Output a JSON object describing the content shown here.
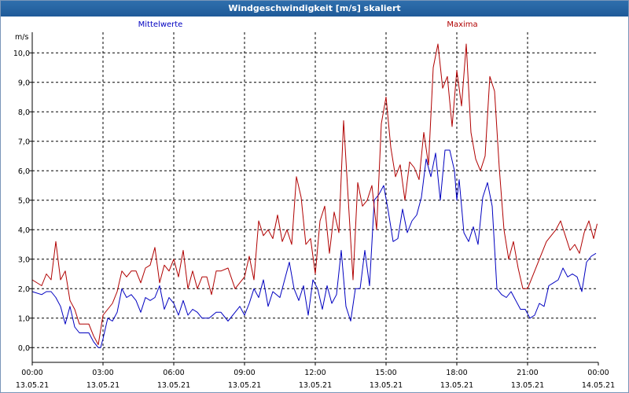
{
  "chart_data": {
    "type": "line",
    "title": "Windgeschwindigkeit [m/s] skaliert",
    "ylabel": "m/s",
    "ylim": [
      -0.5,
      10.7
    ],
    "yticks": [
      "0,0",
      "1,0",
      "2,0",
      "3,0",
      "4,0",
      "5,0",
      "6,0",
      "7,0",
      "8,0",
      "9,0",
      "10,0"
    ],
    "xlim_hours": [
      0,
      24
    ],
    "xticks": [
      {
        "time": "00:00",
        "date": "13.05.21"
      },
      {
        "time": "03:00",
        "date": "13.05.21"
      },
      {
        "time": "06:00",
        "date": "13.05.21"
      },
      {
        "time": "09:00",
        "date": "13.05.21"
      },
      {
        "time": "12:00",
        "date": "13.05.21"
      },
      {
        "time": "15:00",
        "date": "13.05.21"
      },
      {
        "time": "18:00",
        "date": "13.05.21"
      },
      {
        "time": "21:00",
        "date": "13.05.21"
      },
      {
        "time": "00:00",
        "date": "14.05.21"
      }
    ],
    "grid": true,
    "series": [
      {
        "name": "Mittelwerte",
        "color": "#0000c0",
        "x_hours": [
          0.0,
          0.4,
          0.6,
          0.8,
          1.0,
          1.2,
          1.4,
          1.6,
          1.8,
          2.0,
          2.2,
          2.4,
          2.6,
          2.7,
          2.8,
          2.9,
          3.0,
          3.2,
          3.4,
          3.6,
          3.8,
          4.0,
          4.2,
          4.4,
          4.6,
          4.8,
          5.0,
          5.2,
          5.4,
          5.6,
          5.8,
          6.0,
          6.2,
          6.4,
          6.6,
          6.8,
          7.0,
          7.2,
          7.5,
          7.8,
          8.0,
          8.3,
          8.6,
          8.8,
          9.0,
          9.2,
          9.4,
          9.6,
          9.8,
          10.0,
          10.2,
          10.5,
          10.7,
          10.9,
          11.1,
          11.3,
          11.5,
          11.7,
          11.9,
          12.1,
          12.3,
          12.5,
          12.7,
          12.9,
          13.1,
          13.3,
          13.5,
          13.7,
          13.9,
          14.1,
          14.3,
          14.5,
          14.7,
          14.9,
          15.1,
          15.3,
          15.5,
          15.7,
          15.9,
          16.1,
          16.3,
          16.5,
          16.7,
          16.9,
          17.1,
          17.3,
          17.5,
          17.7,
          17.9,
          18.0,
          18.1,
          18.3,
          18.5,
          18.7,
          18.9,
          19.1,
          19.3,
          19.5,
          19.7,
          19.9,
          20.1,
          20.3,
          20.5,
          20.7,
          20.9,
          21.1,
          21.3,
          21.5,
          21.7,
          21.9,
          22.1,
          22.3,
          22.5,
          22.7,
          22.9,
          23.1,
          23.3,
          23.5,
          23.7,
          23.9
        ],
        "values": [
          1.9,
          1.8,
          1.9,
          1.9,
          1.7,
          1.4,
          0.8,
          1.4,
          0.7,
          0.5,
          0.5,
          0.5,
          0.2,
          0.1,
          0.0,
          0.0,
          0.3,
          1.0,
          0.9,
          1.2,
          2.0,
          1.7,
          1.8,
          1.6,
          1.2,
          1.7,
          1.6,
          1.7,
          2.1,
          1.3,
          1.7,
          1.5,
          1.1,
          1.6,
          1.1,
          1.3,
          1.2,
          1.0,
          1.0,
          1.2,
          1.2,
          0.9,
          1.2,
          1.4,
          1.1,
          1.5,
          2.0,
          1.7,
          2.3,
          1.4,
          1.9,
          1.7,
          2.3,
          2.9,
          2.0,
          1.6,
          2.1,
          1.1,
          2.3,
          2.0,
          1.3,
          2.1,
          1.5,
          1.8,
          3.3,
          1.4,
          0.9,
          2.0,
          2.0,
          3.3,
          2.1,
          5.0,
          5.2,
          5.5,
          4.6,
          3.6,
          3.7,
          4.7,
          3.9,
          4.3,
          4.5,
          5.1,
          6.4,
          5.8,
          6.6,
          5.0,
          6.7,
          6.7,
          6.0,
          5.0,
          5.7,
          3.9,
          3.6,
          4.1,
          3.5,
          5.1,
          5.6,
          4.8,
          2.0,
          1.8,
          1.7,
          1.9,
          1.6,
          1.3,
          1.3,
          1.0,
          1.1,
          1.5,
          1.4,
          2.1,
          2.2,
          2.3,
          2.7,
          2.4,
          2.5,
          2.4,
          1.9,
          2.9,
          3.1,
          3.2
        ]
      },
      {
        "name": "Maxima",
        "color": "#b00000",
        "x_hours": [
          0.0,
          0.4,
          0.6,
          0.8,
          1.0,
          1.2,
          1.4,
          1.6,
          1.8,
          2.0,
          2.2,
          2.4,
          2.6,
          2.8,
          3.0,
          3.2,
          3.4,
          3.6,
          3.8,
          4.0,
          4.2,
          4.4,
          4.6,
          4.8,
          5.0,
          5.2,
          5.4,
          5.6,
          5.8,
          6.0,
          6.2,
          6.4,
          6.6,
          6.8,
          7.0,
          7.2,
          7.4,
          7.6,
          7.8,
          8.0,
          8.3,
          8.6,
          8.8,
          9.0,
          9.2,
          9.4,
          9.6,
          9.8,
          10.0,
          10.2,
          10.4,
          10.6,
          10.8,
          11.0,
          11.2,
          11.4,
          11.6,
          11.8,
          12.0,
          12.2,
          12.4,
          12.6,
          12.8,
          13.0,
          13.2,
          13.4,
          13.6,
          13.8,
          14.0,
          14.2,
          14.4,
          14.6,
          14.8,
          15.0,
          15.2,
          15.4,
          15.6,
          15.8,
          16.0,
          16.2,
          16.4,
          16.6,
          16.8,
          17.0,
          17.2,
          17.4,
          17.6,
          17.8,
          18.0,
          18.2,
          18.4,
          18.6,
          18.8,
          19.0,
          19.2,
          19.4,
          19.6,
          19.8,
          20.0,
          20.2,
          20.4,
          20.6,
          20.8,
          21.0,
          21.2,
          21.4,
          21.6,
          21.8,
          22.0,
          22.2,
          22.4,
          22.6,
          22.8,
          23.0,
          23.2,
          23.4,
          23.6,
          23.8,
          23.95
        ],
        "values": [
          2.3,
          2.1,
          2.5,
          2.3,
          3.6,
          2.3,
          2.6,
          1.6,
          1.3,
          0.8,
          0.8,
          0.8,
          0.4,
          0.1,
          1.1,
          1.3,
          1.5,
          1.9,
          2.6,
          2.4,
          2.6,
          2.6,
          2.2,
          2.7,
          2.8,
          3.4,
          2.2,
          2.8,
          2.6,
          3.0,
          2.4,
          3.3,
          2.0,
          2.6,
          2.0,
          2.4,
          2.4,
          1.8,
          2.6,
          2.6,
          2.7,
          2.0,
          2.2,
          2.4,
          3.1,
          2.3,
          4.3,
          3.8,
          4.0,
          3.7,
          4.5,
          3.6,
          4.0,
          3.5,
          5.8,
          5.1,
          3.5,
          3.7,
          2.5,
          4.3,
          4.8,
          3.2,
          4.6,
          3.9,
          7.7,
          5.0,
          2.3,
          5.6,
          4.8,
          5.0,
          5.5,
          4.0,
          7.6,
          8.5,
          6.8,
          5.8,
          6.2,
          5.0,
          6.3,
          6.1,
          5.7,
          7.3,
          6.2,
          9.5,
          10.3,
          8.8,
          9.2,
          7.5,
          9.4,
          8.2,
          10.3,
          7.3,
          6.4,
          6.0,
          6.5,
          9.2,
          8.7,
          6.1,
          4.0,
          3.0,
          3.6,
          2.7,
          2.0,
          2.0,
          2.4,
          2.8,
          3.2,
          3.6,
          3.8,
          4.0,
          4.3,
          3.8,
          3.3,
          3.5,
          3.2,
          3.9,
          4.3,
          3.7,
          4.2
        ]
      }
    ]
  }
}
